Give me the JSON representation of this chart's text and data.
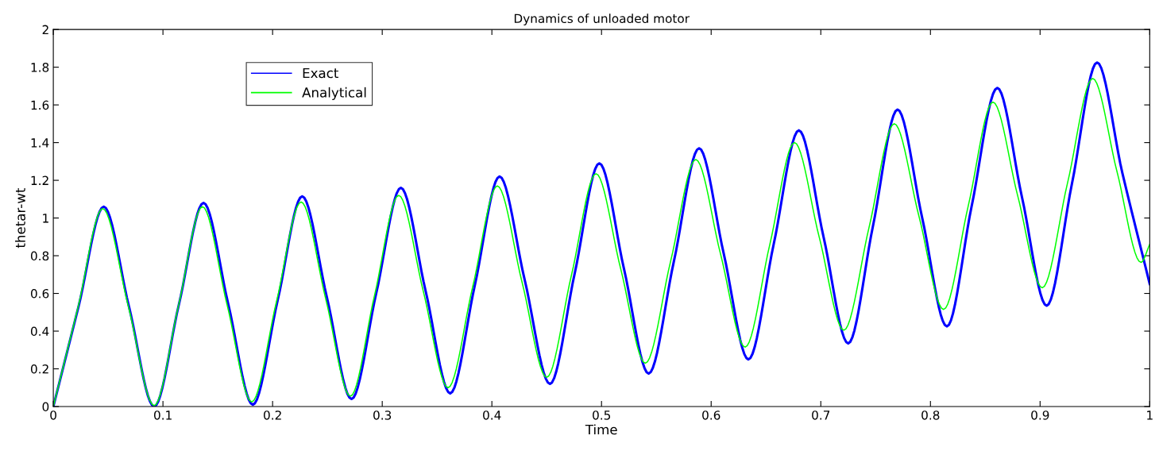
{
  "chart_data": {
    "type": "line",
    "title": "Dynamics of unloaded motor",
    "xlabel": "Time",
    "ylabel": "thetar-wt",
    "xlim": [
      0,
      1
    ],
    "xticks": [
      0,
      0.1,
      0.2,
      0.3,
      0.4,
      0.5,
      0.6,
      0.7,
      0.8,
      0.9,
      1
    ],
    "ylim": [
      0,
      2
    ],
    "yticks": [
      0,
      0.2,
      0.4,
      0.6,
      0.8,
      1,
      1.2,
      1.4,
      1.6,
      1.8,
      2
    ],
    "grid": false,
    "legend": "top left",
    "marker": "none",
    "line_style": "solid",
    "series": [
      {
        "name": "Exact",
        "color": "#0000ff",
        "x": [
          0,
          0.023,
          0.046,
          0.069,
          0.092,
          0.1145,
          0.137,
          0.1595,
          0.182,
          0.2045,
          0.227,
          0.2495,
          0.272,
          0.2945,
          0.317,
          0.3395,
          0.362,
          0.3845,
          0.407,
          0.43,
          0.453,
          0.4755,
          0.498,
          0.5205,
          0.543,
          0.566,
          0.589,
          0.6115,
          0.634,
          0.657,
          0.68,
          0.7025,
          0.725,
          0.7475,
          0.77,
          0.7925,
          0.815,
          0.8375,
          0.861,
          0.8835,
          0.906,
          0.929,
          0.952,
          0.975,
          1.0
        ],
        "values": [
          0,
          0.53,
          1.06,
          0.53,
          0,
          0.54,
          1.08,
          0.545,
          0.01,
          0.56,
          1.115,
          0.58,
          0.04,
          0.6,
          1.16,
          0.615,
          0.07,
          0.645,
          1.22,
          0.67,
          0.12,
          0.705,
          1.29,
          0.73,
          0.175,
          0.77,
          1.37,
          0.81,
          0.25,
          0.86,
          1.465,
          0.9,
          0.335,
          0.955,
          1.575,
          1.0,
          0.425,
          1.06,
          1.69,
          1.11,
          0.535,
          1.18,
          1.825,
          1.24,
          0.65
        ]
      },
      {
        "name": "Analytical",
        "color": "#00ff00",
        "x": [
          0,
          0.0225,
          0.045,
          0.0685,
          0.092,
          0.114,
          0.136,
          0.1585,
          0.181,
          0.2035,
          0.226,
          0.2485,
          0.271,
          0.293,
          0.315,
          0.3375,
          0.36,
          0.3825,
          0.405,
          0.4275,
          0.45,
          0.4725,
          0.495,
          0.5175,
          0.54,
          0.563,
          0.586,
          0.6085,
          0.631,
          0.6535,
          0.676,
          0.6985,
          0.721,
          0.744,
          0.767,
          0.7895,
          0.812,
          0.8345,
          0.857,
          0.8795,
          0.902,
          0.925,
          0.948,
          0.97,
          0.992,
          1.0
        ],
        "values": [
          0,
          0.525,
          1.05,
          0.53,
          0.005,
          0.53,
          1.06,
          0.54,
          0.025,
          0.555,
          1.085,
          0.57,
          0.055,
          0.59,
          1.12,
          0.61,
          0.1,
          0.635,
          1.17,
          0.66,
          0.155,
          0.695,
          1.235,
          0.73,
          0.23,
          0.77,
          1.31,
          0.81,
          0.315,
          0.86,
          1.4,
          0.9,
          0.405,
          0.95,
          1.5,
          1.01,
          0.515,
          1.065,
          1.615,
          1.12,
          0.63,
          1.185,
          1.74,
          1.25,
          0.765,
          0.86
        ]
      }
    ]
  }
}
